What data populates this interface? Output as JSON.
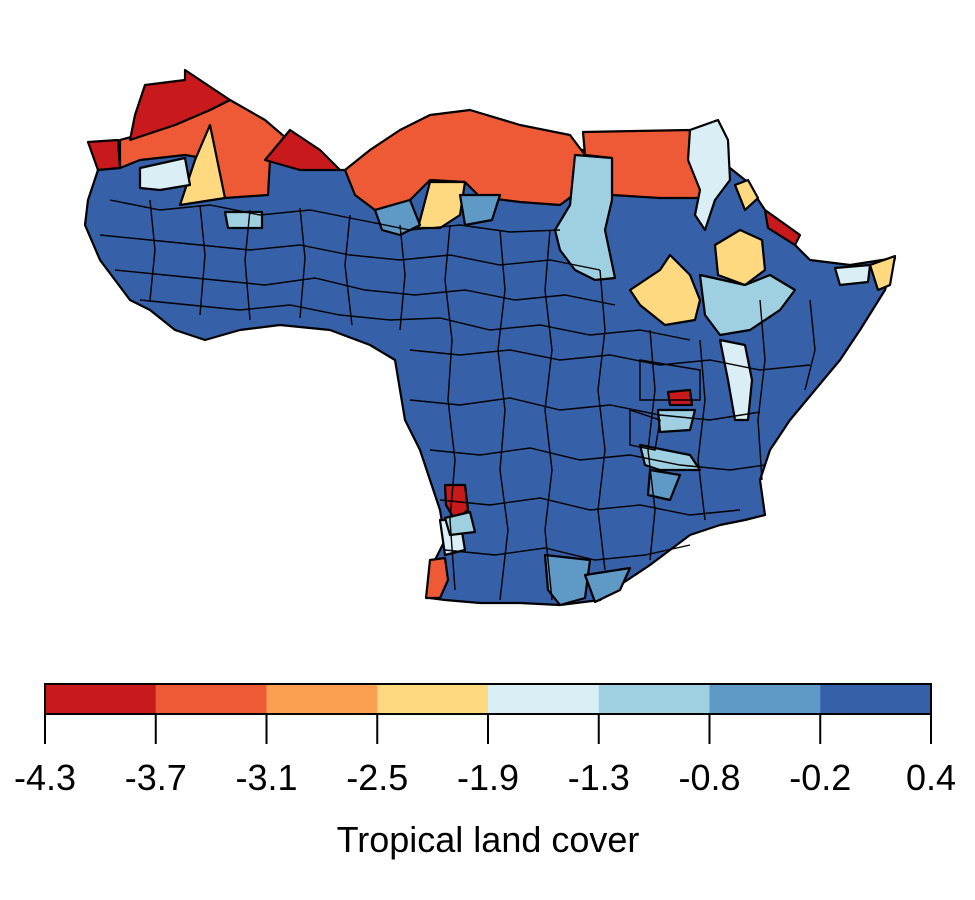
{
  "legend": {
    "title": "Tropical land cover",
    "breaks": [
      "-4.3",
      "-3.7",
      "-3.1",
      "-2.5",
      "-1.9",
      "-1.3",
      "-0.8",
      "-0.2",
      "0.4"
    ],
    "colors": [
      "#c8191c",
      "#ef5a36",
      "#fba050",
      "#fed980",
      "#d9eef5",
      "#9fd0e2",
      "#5f99c6",
      "#3660a8"
    ]
  },
  "chart_data": {
    "type": "choropleth",
    "region": "Tropical Africa (administrative districts)",
    "variable": "Tropical land cover",
    "class_breaks": [
      -4.3,
      -3.7,
      -3.1,
      -2.5,
      -1.9,
      -1.3,
      -0.8,
      -0.2,
      0.4
    ],
    "predominant_class": [
      -0.2,
      0.4
    ],
    "low_values_region": "northern Sahel belt"
  }
}
